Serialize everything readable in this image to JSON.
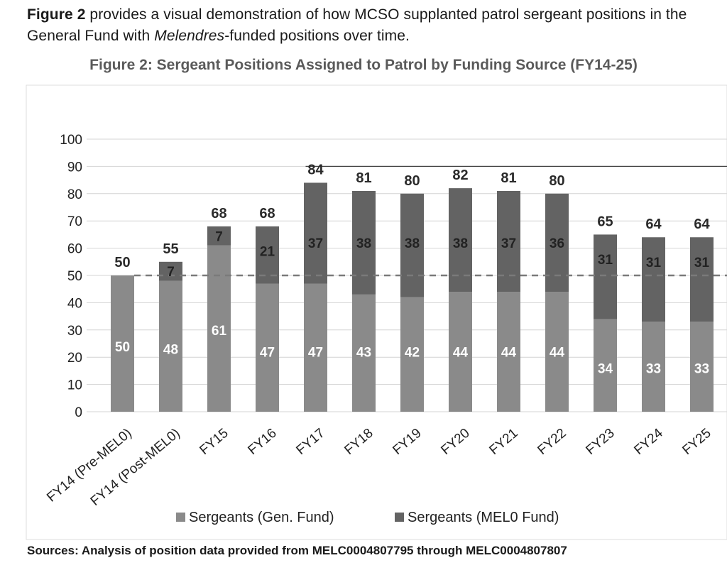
{
  "intro": {
    "lead": "Figure 2",
    "text1": " provides a visual demonstration of how MCSO supplanted patrol sergeant positions in the General Fund with ",
    "emph": "Melendres",
    "text2": "-funded positions over time."
  },
  "figure_title": "Figure 2: Sergeant Positions Assigned to Patrol by Funding Source (FY14-25)",
  "sources": "Sources: Analysis of position data provided from MELC0004807795 through MELC0004807807",
  "chart_data": {
    "type": "bar",
    "stacked": true,
    "title": "Figure 2: Sergeant Positions Assigned to Patrol by Funding Source (FY14-25)",
    "xlabel": "",
    "ylabel": "",
    "ylim": [
      0,
      100
    ],
    "yticks": [
      0,
      10,
      20,
      30,
      40,
      50,
      60,
      70,
      80,
      90,
      100
    ],
    "categories": [
      "FY14 (Pre-MEL0)",
      "FY14 (Post-MEL0)",
      "FY15",
      "FY16",
      "FY17",
      "FY18",
      "FY19",
      "FY20",
      "FY21",
      "FY22",
      "FY23",
      "FY24",
      "FY25"
    ],
    "series": [
      {
        "name": "Sergeants (Gen. Fund)",
        "color": "#8a8a8a",
        "values": [
          50,
          48,
          61,
          47,
          47,
          43,
          42,
          44,
          44,
          44,
          34,
          33,
          33
        ]
      },
      {
        "name": "Sergeants (MEL0 Fund)",
        "color": "#636363",
        "values": [
          0,
          7,
          7,
          21,
          37,
          38,
          38,
          38,
          37,
          36,
          31,
          31,
          31
        ]
      }
    ],
    "series_label_text": [
      [
        "50",
        "48",
        "61",
        "47",
        "47",
        "43",
        "42",
        "44",
        "44",
        "44",
        "34",
        "33",
        "33"
      ],
      [
        "",
        "7",
        "7",
        "21",
        "37",
        "38",
        "38",
        "38",
        "37",
        "36",
        "31",
        "31",
        "31"
      ]
    ],
    "totals": [
      50,
      55,
      68,
      68,
      84,
      81,
      80,
      82,
      81,
      80,
      65,
      64,
      64
    ],
    "reference_lines": [
      {
        "value": 50,
        "style": "dashed"
      },
      {
        "value": 90,
        "style": "solid",
        "extent": "from FY17 to right edge"
      }
    ],
    "legend_position": "bottom-center"
  }
}
